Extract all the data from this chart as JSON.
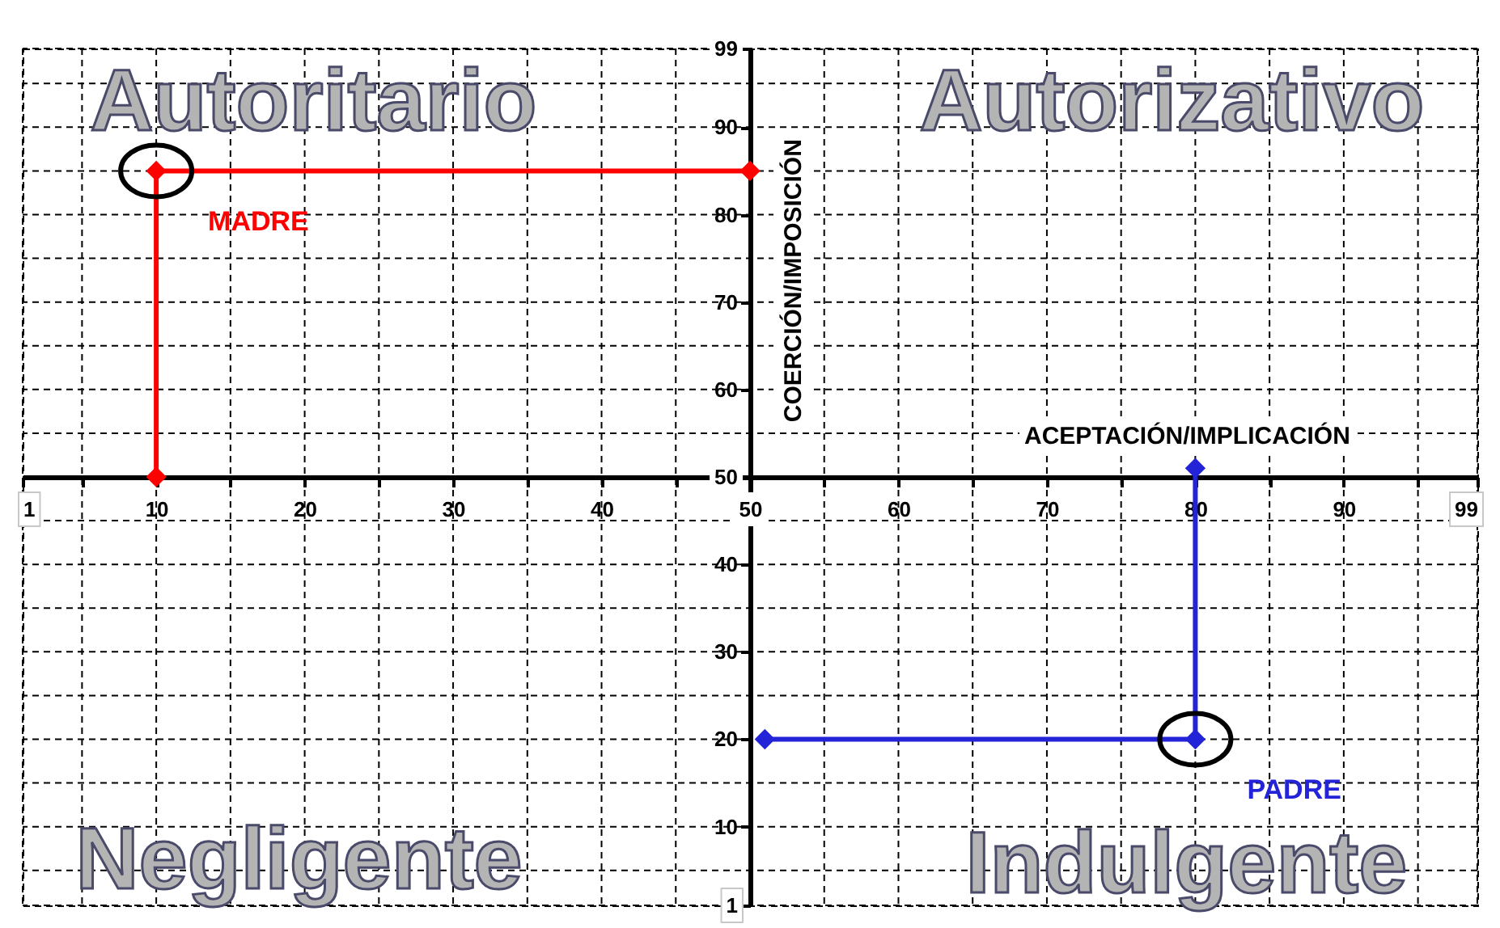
{
  "chart_data": {
    "type": "line",
    "xlabel": "ACEPTACIÓN/IMPLICACIÓN",
    "ylabel": "COERCIÓN/IMPOSICIÓN",
    "annotations": [
      "Autoritario",
      "Autorizativo",
      "Negligente",
      "Indulgente"
    ],
    "series": [
      {
        "name": "MADRE",
        "color": "#ff0000",
        "x": [
          10,
          10,
          50
        ],
        "values": [
          50,
          85,
          85
        ]
      },
      {
        "name": "PADRE",
        "color": "#2323d8",
        "x": [
          80,
          80,
          51
        ],
        "values": [
          51,
          20,
          20
        ]
      }
    ],
    "xlim": [
      1,
      99
    ],
    "xticks": [
      1,
      {
        "value": 5,
        "label": null
      },
      10,
      {
        "value": 15,
        "label": null
      },
      20,
      {
        "value": 25,
        "label": null
      },
      30,
      {
        "value": 35,
        "label": null
      },
      40,
      {
        "value": 45,
        "label": null
      },
      50,
      {
        "value": 55,
        "label": null
      },
      60,
      {
        "value": 65,
        "label": null
      },
      70,
      {
        "value": 75,
        "label": null
      },
      80,
      {
        "value": 85,
        "label": null
      },
      90,
      {
        "value": 95,
        "label": null
      },
      99
    ],
    "ylim": [
      1,
      99
    ],
    "yticks": [
      1,
      {
        "value": 5,
        "label": null
      },
      10,
      {
        "value": 15,
        "label": null
      },
      20,
      {
        "value": 25,
        "label": null
      },
      30,
      {
        "value": 35,
        "label": null
      },
      40,
      {
        "value": 45,
        "label": null
      },
      50,
      {
        "value": 55,
        "label": null
      },
      60,
      {
        "value": 65,
        "label": null
      },
      70,
      {
        "value": 75,
        "label": null
      },
      80,
      {
        "value": 85,
        "label": null
      },
      90,
      {
        "value": 95,
        "label": null
      },
      99
    ],
    "grid": true,
    "legend": false,
    "marker": "diamond",
    "line_style": "solid"
  }
}
